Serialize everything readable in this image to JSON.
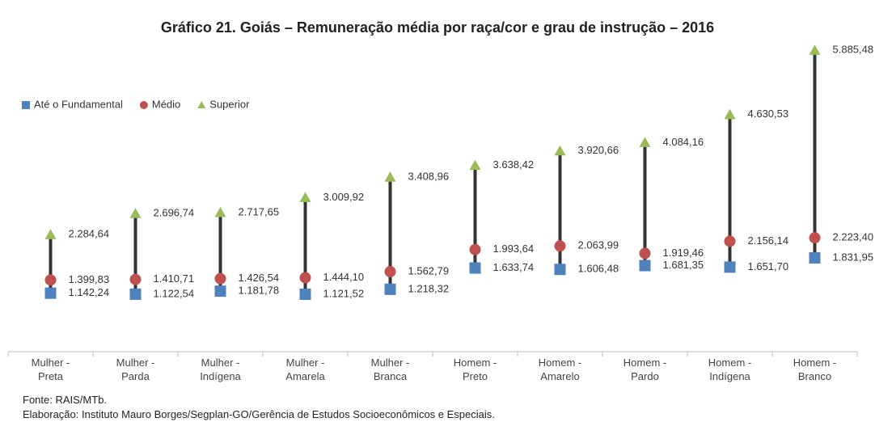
{
  "chart_data": {
    "type": "hilo",
    "title": "Gráfico 21. Goiás – Remuneração média por raça/cor e grau de instrução – 2016",
    "categories": [
      "Mulher - Preta",
      "Mulher - Parda",
      "Mulher - Indígena",
      "Mulher - Amarela",
      "Mulher - Branca",
      "Homem - Preto",
      "Homem - Amarelo",
      "Homem - Pardo",
      "Homem - Indígena",
      "Homem - Branco"
    ],
    "series": [
      {
        "name": "Até o Fundamental",
        "color": "#4f81bd",
        "marker": "square",
        "values": [
          1142.24,
          1122.54,
          1181.78,
          1121.52,
          1218.32,
          1633.74,
          1606.48,
          1681.35,
          1651.7,
          1831.95
        ],
        "value_labels": [
          "1.142,24",
          "1.122,54",
          "1.181,78",
          "1.121,52",
          "1.218,32",
          "1.633,74",
          "1.606,48",
          "1.681,35",
          "1.651,70",
          "1.831,95"
        ]
      },
      {
        "name": "Médio",
        "color": "#c0504d",
        "marker": "circle",
        "values": [
          1399.83,
          1410.71,
          1426.54,
          1444.1,
          1562.79,
          1993.64,
          2063.99,
          1919.46,
          2156.14,
          2223.4
        ],
        "value_labels": [
          "1.399,83",
          "1.410,71",
          "1.426,54",
          "1.444,10",
          "1.562,79",
          "1.993,64",
          "2.063,99",
          "1.919,46",
          "2.156,14",
          "2.223,40"
        ]
      },
      {
        "name": "Superior",
        "color": "#9bbb59",
        "marker": "triangle",
        "values": [
          2284.64,
          2696.74,
          2717.65,
          3009.92,
          3408.96,
          3638.42,
          3920.66,
          4084.16,
          4630.53,
          5885.48
        ],
        "value_labels": [
          "2.284,64",
          "2.696,74",
          "2.717,65",
          "3.009,92",
          "3.408,96",
          "3.638,42",
          "3.920,66",
          "4.084,16",
          "4.630,53",
          "5.885,48"
        ]
      }
    ],
    "ylim": [
      0,
      6000
    ],
    "source": "Fonte: RAIS/MTb.",
    "credit": "Elaboração: Instituto Mauro Borges/Segplan-GO/Gerência de Estudos Socioeconômicos e Especiais."
  }
}
